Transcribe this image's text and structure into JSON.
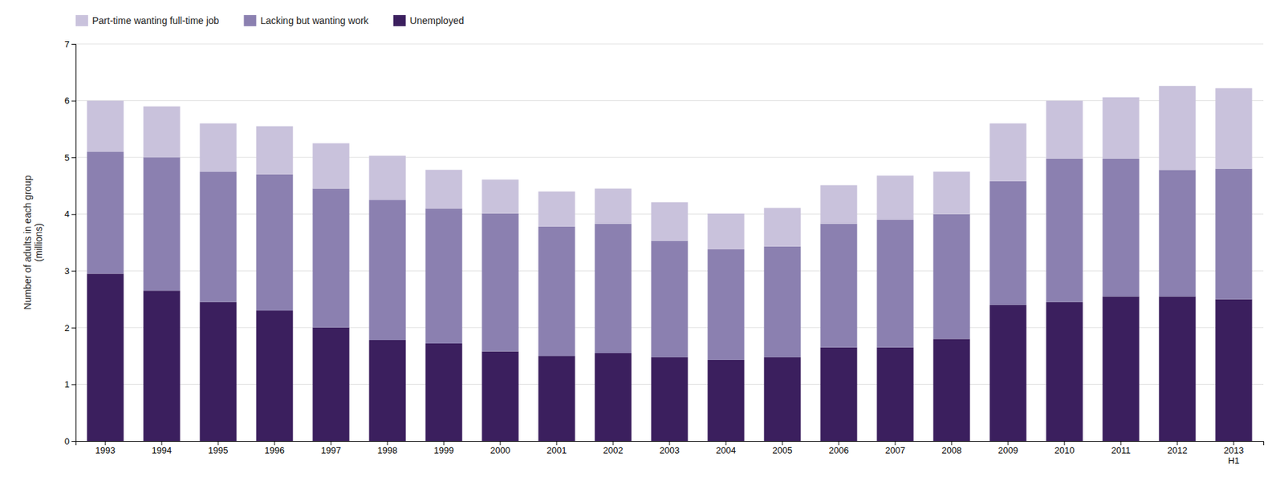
{
  "chart_data": {
    "type": "bar",
    "stacked": true,
    "categories": [
      "1993",
      "1994",
      "1995",
      "1996",
      "1997",
      "1998",
      "1999",
      "2000",
      "2001",
      "2002",
      "2003",
      "2004",
      "2005",
      "2006",
      "2007",
      "2008",
      "2009",
      "2010",
      "2011",
      "2012",
      "2013\nH1"
    ],
    "series": [
      {
        "name": "Unemployed",
        "color": "#3b1f5e",
        "values": [
          2.95,
          2.65,
          2.45,
          2.3,
          2.0,
          1.78,
          1.72,
          1.58,
          1.5,
          1.55,
          1.48,
          1.43,
          1.48,
          1.65,
          1.65,
          1.8,
          2.4,
          2.45,
          2.55,
          2.55,
          2.5
        ]
      },
      {
        "name": "Lacking but wanting work",
        "color": "#8b80b0",
        "values": [
          2.15,
          2.35,
          2.3,
          2.4,
          2.45,
          2.47,
          2.38,
          2.43,
          2.28,
          2.28,
          2.05,
          1.95,
          1.95,
          2.18,
          2.25,
          2.2,
          2.18,
          2.53,
          2.43,
          2.23,
          2.3
        ]
      },
      {
        "name": "Part-time wanting full-time job",
        "color": "#c9c2dc",
        "values": [
          0.9,
          0.9,
          0.85,
          0.85,
          0.8,
          0.78,
          0.68,
          0.6,
          0.62,
          0.62,
          0.68,
          0.63,
          0.68,
          0.68,
          0.78,
          0.75,
          1.02,
          1.02,
          1.08,
          1.48,
          1.42
        ]
      }
    ],
    "ylabel": "Number of adults in each group\n(millions)",
    "ylim": [
      0,
      7
    ],
    "yticks": [
      0,
      1,
      2,
      3,
      4,
      5,
      6,
      7
    ],
    "grid": true,
    "legend": "top"
  }
}
